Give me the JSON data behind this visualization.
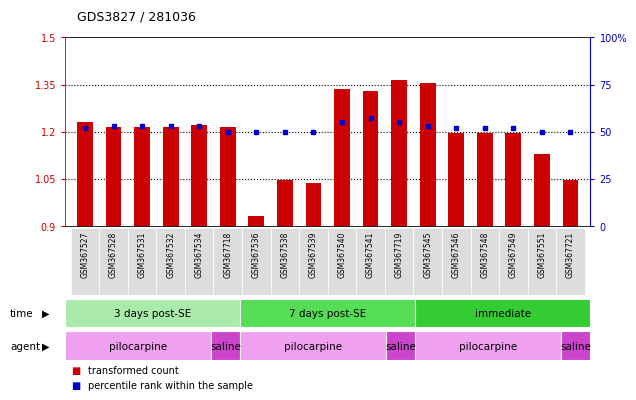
{
  "title": "GDS3827 / 281036",
  "samples": [
    "GSM367527",
    "GSM367528",
    "GSM367531",
    "GSM367532",
    "GSM367534",
    "GSM367718",
    "GSM367536",
    "GSM367538",
    "GSM367539",
    "GSM367540",
    "GSM367541",
    "GSM367719",
    "GSM367545",
    "GSM367546",
    "GSM367548",
    "GSM367549",
    "GSM367551",
    "GSM367721"
  ],
  "transformed_count": [
    1.23,
    1.215,
    1.215,
    1.215,
    1.22,
    1.215,
    0.93,
    1.045,
    1.035,
    1.335,
    1.33,
    1.365,
    1.355,
    1.195,
    1.195,
    1.195,
    1.13,
    1.045
  ],
  "percentile_rank": [
    52,
    53,
    53,
    53,
    53,
    50,
    50,
    50,
    50,
    55,
    57,
    55,
    53,
    52,
    52,
    52,
    50,
    50
  ],
  "bar_color": "#cc0000",
  "dot_color": "#0000cc",
  "ylim_left": [
    0.9,
    1.5
  ],
  "ylim_right": [
    0,
    100
  ],
  "yticks_left": [
    0.9,
    1.05,
    1.2,
    1.35,
    1.5
  ],
  "yticks_right": [
    0,
    25,
    50,
    75,
    100
  ],
  "ytick_labels_left": [
    "0.9",
    "1.05",
    "1.2",
    "1.35",
    "1.5"
  ],
  "ytick_labels_right": [
    "0",
    "25",
    "50",
    "75",
    "100%"
  ],
  "hlines": [
    1.05,
    1.2,
    1.35
  ],
  "time_groups": [
    {
      "label": "3 days post-SE",
      "start": 0,
      "end": 6,
      "color": "#aaeaaa"
    },
    {
      "label": "7 days post-SE",
      "start": 6,
      "end": 12,
      "color": "#55dd55"
    },
    {
      "label": "immediate",
      "start": 12,
      "end": 18,
      "color": "#33cc33"
    }
  ],
  "agent_groups": [
    {
      "label": "pilocarpine",
      "start": 0,
      "end": 5,
      "color": "#f0a0f0"
    },
    {
      "label": "saline",
      "start": 5,
      "end": 6,
      "color": "#cc44cc"
    },
    {
      "label": "pilocarpine",
      "start": 6,
      "end": 11,
      "color": "#f0a0f0"
    },
    {
      "label": "saline",
      "start": 11,
      "end": 12,
      "color": "#cc44cc"
    },
    {
      "label": "pilocarpine",
      "start": 12,
      "end": 17,
      "color": "#f0a0f0"
    },
    {
      "label": "saline",
      "start": 17,
      "end": 18,
      "color": "#cc44cc"
    }
  ],
  "legend_items": [
    {
      "label": "transformed count",
      "color": "#cc0000"
    },
    {
      "label": "percentile rank within the sample",
      "color": "#0000cc"
    }
  ],
  "background_color": "#ffffff",
  "tick_label_color_left": "#cc0000",
  "tick_label_color_right": "#0000cc",
  "xtick_bg": "#dddddd"
}
